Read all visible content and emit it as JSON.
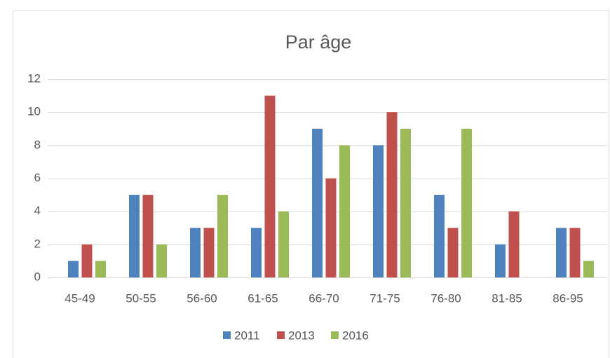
{
  "chart_data": {
    "type": "bar",
    "title": "Par âge",
    "categories": [
      "45-49",
      "50-55",
      "56-60",
      "61-65",
      "66-70",
      "71-75",
      "76-80",
      "81-85",
      "86-95"
    ],
    "series": [
      {
        "name": "2011",
        "color": "#4f81bd",
        "values": [
          1,
          5,
          3,
          3,
          9,
          8,
          5,
          2,
          3
        ]
      },
      {
        "name": "2013",
        "color": "#c0504d",
        "values": [
          2,
          5,
          3,
          11,
          6,
          10,
          3,
          4,
          3
        ]
      },
      {
        "name": "2016",
        "color": "#9bbb59",
        "values": [
          1,
          2,
          5,
          4,
          8,
          9,
          9,
          null,
          1
        ]
      }
    ],
    "ylim": [
      0,
      12
    ],
    "yticks": [
      0,
      2,
      4,
      6,
      8,
      10,
      12
    ],
    "grid": true,
    "legend": "bottom"
  }
}
